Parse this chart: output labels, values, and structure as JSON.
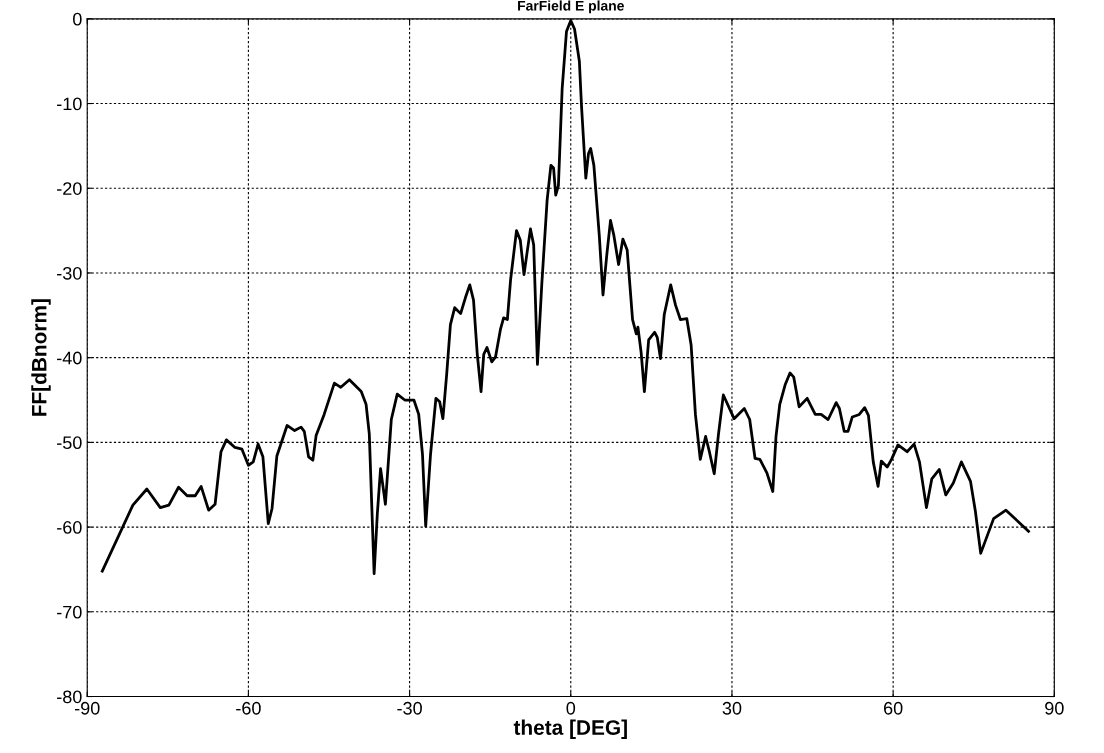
{
  "chart_data": {
    "type": "line",
    "title": "FarField E plane",
    "xlabel": "theta [DEG]",
    "ylabel": "FF[dBnorm]",
    "xlim": [
      -90,
      90
    ],
    "xticks": [
      -90,
      -60,
      -30,
      0,
      30,
      60,
      90
    ],
    "ylim": [
      -80,
      0
    ],
    "yticks": [
      -80,
      -70,
      -60,
      -50,
      -40,
      -30,
      -20,
      -10,
      0
    ],
    "grid": true,
    "marker": "none",
    "line_style": "solid",
    "series": [
      {
        "color": "#000000",
        "x": [
          -87.2,
          -81.5,
          -78.9,
          -76.4,
          -74.8,
          -73.0,
          -71.4,
          -69.9,
          -68.8,
          -67.4,
          -66.2,
          -65.1,
          -64.1,
          -62.5,
          -61.2,
          -60.0,
          -59.1,
          -58.2,
          -57.3,
          -56.3,
          -55.6,
          -54.7,
          -52.8,
          -51.4,
          -50.2,
          -49.6,
          -48.8,
          -48.0,
          -47.4,
          -45.9,
          -44.0,
          -42.8,
          -41.2,
          -39.0,
          -38.1,
          -37.5,
          -36.6,
          -36.0,
          -35.4,
          -34.5,
          -33.4,
          -32.3,
          -30.9,
          -29.2,
          -28.3,
          -27.6,
          -27.0,
          -26.1,
          -25.1,
          -24.4,
          -23.8,
          -23.1,
          -22.4,
          -21.6,
          -20.5,
          -19.6,
          -18.8,
          -18.1,
          -17.4,
          -16.7,
          -16.2,
          -15.6,
          -14.7,
          -14.0,
          -13.1,
          -12.5,
          -11.8,
          -11.2,
          -10.1,
          -9.4,
          -8.7,
          -8.2,
          -7.5,
          -6.9,
          -6.2,
          -5.4,
          -4.4,
          -3.7,
          -3.2,
          -2.8,
          -2.3,
          -1.6,
          -0.8,
          0,
          0.7,
          1.6,
          2.0,
          2.8,
          3.3,
          3.7,
          4.3,
          5.3,
          6.0,
          6.7,
          7.4,
          8.0,
          8.9,
          9.7,
          10.5,
          11.5,
          12.2,
          12.5,
          13.1,
          13.7,
          14.5,
          15.6,
          16.1,
          16.7,
          17.4,
          18.6,
          19.5,
          20.4,
          21.6,
          22.4,
          23.2,
          24.1,
          25.1,
          25.8,
          26.7,
          27.5,
          28.4,
          30.4,
          32.3,
          33.3,
          34.3,
          35.2,
          36.5,
          37.6,
          38.2,
          38.9,
          39.9,
          40.8,
          41.5,
          42.5,
          44.0,
          45.5,
          46.6,
          47.9,
          49.4,
          50.0,
          50.9,
          51.6,
          52.4,
          53.7,
          54.7,
          55.4,
          56.3,
          57.2,
          57.8,
          58.9,
          59.7,
          60.9,
          62.6,
          63.9,
          64.9,
          66.2,
          67.2,
          68.6,
          69.8,
          71.2,
          72.7,
          74.4,
          75.3,
          76.3,
          78.7,
          81.0,
          85.2
        ],
        "values": [
          -65.2,
          -57.4,
          -55.5,
          -57.7,
          -57.4,
          -55.3,
          -56.3,
          -56.3,
          -55.2,
          -58.0,
          -57.3,
          -51.1,
          -49.7,
          -50.6,
          -50.8,
          -52.7,
          -52.3,
          -50.2,
          -51.7,
          -59.6,
          -57.8,
          -51.6,
          -48.0,
          -48.6,
          -48.2,
          -48.7,
          -51.7,
          -52.1,
          -49.2,
          -46.7,
          -43.0,
          -43.5,
          -42.6,
          -44.0,
          -45.5,
          -49.0,
          -65.5,
          -58.4,
          -53.1,
          -57.3,
          -47.3,
          -44.3,
          -45.0,
          -45.0,
          -46.7,
          -51.4,
          -59.9,
          -51.4,
          -44.8,
          -45.2,
          -47.2,
          -42.0,
          -36.1,
          -34.1,
          -34.8,
          -32.9,
          -31.4,
          -33.2,
          -39.6,
          -44.0,
          -39.6,
          -38.8,
          -40.5,
          -39.9,
          -36.7,
          -35.3,
          -35.5,
          -30.8,
          -25.0,
          -26.1,
          -30.2,
          -27.9,
          -24.8,
          -26.7,
          -40.8,
          -31.4,
          -21.4,
          -17.3,
          -17.6,
          -20.8,
          -19.7,
          -8.2,
          -1.5,
          -0.2,
          -1.2,
          -5.0,
          -10.3,
          -18.8,
          -15.9,
          -15.3,
          -17.3,
          -25.5,
          -32.6,
          -27.9,
          -23.8,
          -25.5,
          -29.0,
          -26.0,
          -27.3,
          -35.5,
          -37.2,
          -36.4,
          -39.4,
          -44.0,
          -37.9,
          -37.0,
          -37.6,
          -40.1,
          -34.9,
          -31.4,
          -33.8,
          -35.5,
          -35.4,
          -38.5,
          -46.7,
          -52.0,
          -49.3,
          -51.1,
          -53.7,
          -49.0,
          -44.4,
          -47.2,
          -46.0,
          -47.3,
          -51.9,
          -52.0,
          -53.6,
          -55.8,
          -49.3,
          -45.5,
          -43.2,
          -41.8,
          -42.3,
          -45.8,
          -44.8,
          -46.7,
          -46.7,
          -47.3,
          -45.3,
          -46.0,
          -48.7,
          -48.7,
          -47.0,
          -46.7,
          -45.9,
          -46.8,
          -52.3,
          -55.2,
          -52.2,
          -52.9,
          -52.0,
          -50.3,
          -51.1,
          -50.2,
          -52.3,
          -57.7,
          -54.3,
          -53.2,
          -56.2,
          -54.8,
          -52.3,
          -54.6,
          -58.1,
          -63.1,
          -59.0,
          -58.0,
          -60.5
        ]
      }
    ]
  }
}
